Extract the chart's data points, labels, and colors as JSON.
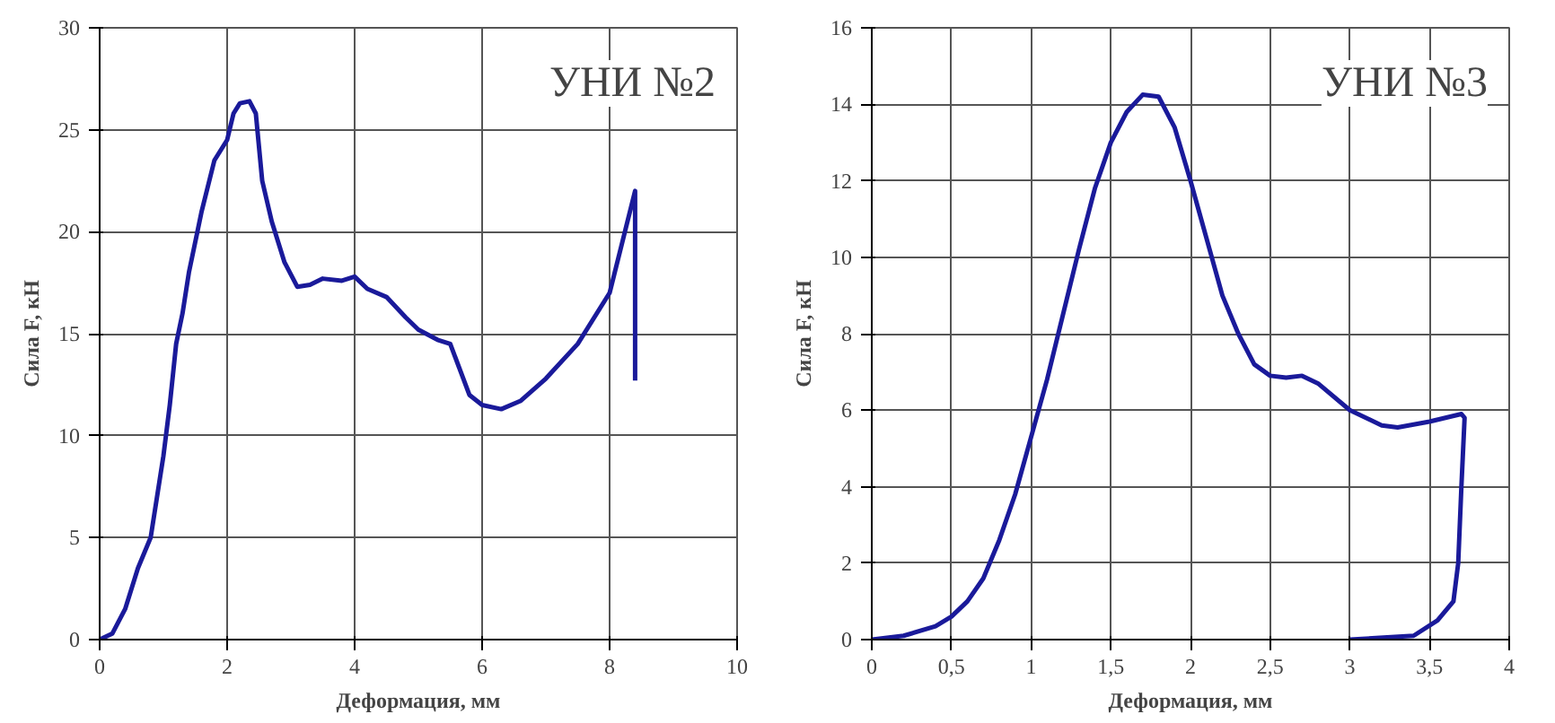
{
  "chart_data": [
    {
      "type": "line",
      "xlabel": "Деформация, мм",
      "ylabel": "Сила F, кН",
      "annotations": [
        "УНИ №2"
      ],
      "xlim": [
        0,
        10
      ],
      "ylim": [
        0,
        30
      ],
      "xticks": [
        0,
        2,
        4,
        6,
        8,
        10
      ],
      "yticks": [
        0,
        5,
        10,
        15,
        20,
        25,
        30
      ],
      "grid": true,
      "marker": "none",
      "line_style": "solid",
      "series": [
        {
          "color": "#1a1a9a",
          "x": [
            0,
            0.2,
            0.4,
            0.6,
            0.8,
            1.0,
            1.1,
            1.2,
            1.3,
            1.4,
            1.6,
            1.8,
            2.0,
            2.1,
            2.2,
            2.35,
            2.45,
            2.55,
            2.7,
            2.9,
            3.1,
            3.3,
            3.5,
            3.8,
            4.0,
            4.2,
            4.5,
            4.8,
            5.0,
            5.3,
            5.5,
            5.8,
            6.0,
            6.3,
            6.6,
            7.0,
            7.5,
            8.0,
            8.4,
            8.4
          ],
          "values": [
            0,
            0.3,
            1.5,
            3.5,
            5,
            9,
            11.5,
            14.5,
            16,
            18,
            21,
            23.5,
            24.5,
            25.8,
            26.3,
            26.4,
            25.8,
            22.5,
            20.5,
            18.5,
            17.3,
            17.4,
            17.7,
            17.6,
            17.8,
            17.2,
            16.8,
            15.8,
            15.2,
            14.7,
            14.5,
            12,
            11.5,
            11.3,
            11.7,
            12.8,
            14.5,
            17,
            22,
            12.7
          ]
        }
      ]
    },
    {
      "type": "line",
      "xlabel": "Деформация, мм",
      "ylabel": "Сила F, кН",
      "annotations": [
        "УНИ №3"
      ],
      "xlim": [
        0,
        4
      ],
      "ylim": [
        0,
        16
      ],
      "xticks": [
        0,
        {
          "value": 0.5,
          "label": "0,5"
        },
        1,
        {
          "value": 1.5,
          "label": "1,5"
        },
        2,
        {
          "value": 2.5,
          "label": "2,5"
        },
        3,
        {
          "value": 3.5,
          "label": "3,5"
        },
        4
      ],
      "yticks": [
        0,
        2,
        4,
        6,
        8,
        10,
        12,
        14,
        16
      ],
      "grid": true,
      "marker": "none",
      "line_style": "solid",
      "series": [
        {
          "color": "#1a1a9a",
          "x": [
            0,
            0.2,
            0.4,
            0.5,
            0.6,
            0.7,
            0.8,
            0.9,
            1.0,
            1.1,
            1.2,
            1.3,
            1.4,
            1.5,
            1.6,
            1.7,
            1.8,
            1.9,
            2.0,
            2.1,
            2.2,
            2.3,
            2.4,
            2.5,
            2.6,
            2.7,
            2.8,
            3.0,
            3.2,
            3.3,
            3.5,
            3.7,
            3.72,
            3.7,
            3.68,
            3.65,
            3.55,
            3.4,
            3.0
          ],
          "values": [
            0,
            0.1,
            0.35,
            0.6,
            1.0,
            1.6,
            2.6,
            3.8,
            5.3,
            6.8,
            8.5,
            10.2,
            11.8,
            13.0,
            13.8,
            14.25,
            14.2,
            13.4,
            12.0,
            10.5,
            9.0,
            8.0,
            7.2,
            6.9,
            6.85,
            6.9,
            6.7,
            6.0,
            5.6,
            5.55,
            5.7,
            5.9,
            5.8,
            4,
            2,
            1.0,
            0.5,
            0.1,
            0
          ]
        }
      ]
    }
  ]
}
